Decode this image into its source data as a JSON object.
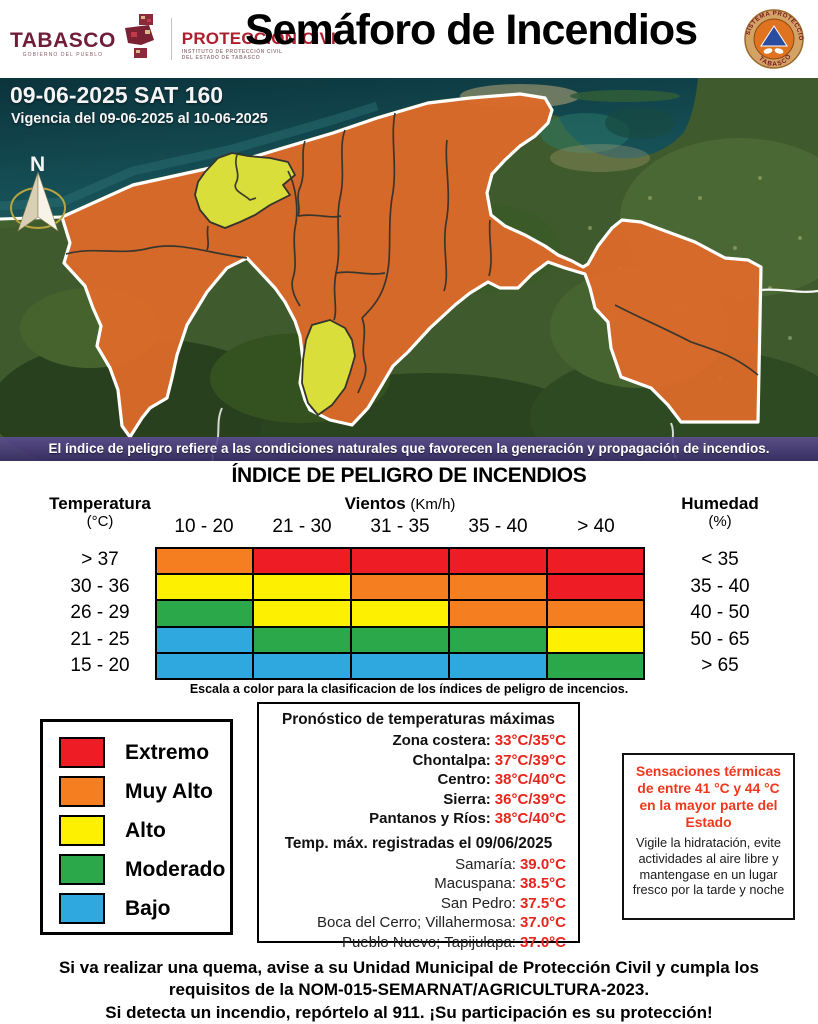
{
  "header": {
    "tabasco_logo": {
      "title": "TABASCO",
      "subtitle": "GOBIERNO DEL PUEBLO"
    },
    "pc_logo": {
      "title": "PROTECCIÓN CIVIL",
      "subtitle_line1": "INSTITUTO DE PROTECCIÓN CIVIL",
      "subtitle_line2": "DEL ESTADO DE TABASCO"
    },
    "title": "Semáforo de Incendios",
    "seal": {
      "arc_top": "SISTEMA PROTECCIÓN CIVIL",
      "arc_bottom": "TABASCO"
    }
  },
  "map": {
    "date_label": "09-06-2025 SAT 160",
    "vigencia": "Vigencia del 09-06-2025 al 10-06-2025",
    "north_label": "N",
    "caption": "El índice de peligro refiere a las condiciones naturales que favorecen la generación y propagación de incendios.",
    "colors": {
      "muy_alto": "#db6a2a",
      "alto": "#dade3a",
      "ocean": "#123f47",
      "land": "#3f5a2c"
    }
  },
  "index_table": {
    "title": "ÍNDICE DE PELIGRO DE INCENDIOS",
    "row_group_label": "Temperatura",
    "row_group_unit": "(°C)",
    "col_group_label": "Vientos",
    "col_group_unit": "(Km/h)",
    "humidity_label": "Humedad",
    "humidity_unit": "(%)",
    "wind_cols": [
      "10 - 20",
      "21 - 30",
      "31 - 35",
      "35 - 40",
      "> 40"
    ],
    "temp_rows": [
      "> 37",
      "30 - 36",
      "26 - 29",
      "21 - 25",
      "15 - 20"
    ],
    "humidity_rows": [
      "< 35",
      "35 - 40",
      "40 - 50",
      "50 - 65",
      "> 65"
    ],
    "cells": [
      [
        "orange",
        "red",
        "red",
        "red",
        "red"
      ],
      [
        "yellow",
        "yellow",
        "orange",
        "orange",
        "red"
      ],
      [
        "green",
        "yellow",
        "yellow",
        "orange",
        "orange"
      ],
      [
        "blue",
        "green",
        "green",
        "green",
        "yellow"
      ],
      [
        "blue",
        "blue",
        "blue",
        "blue",
        "green"
      ]
    ],
    "palette": {
      "red": "#ee1c25",
      "orange": "#f57e20",
      "yellow": "#fdf000",
      "green": "#2aa84a",
      "blue": "#2fa8e0"
    },
    "caption": "Escala a color para la clasificacion de los índices de peligro de incencios."
  },
  "legend": {
    "items": [
      {
        "label": "Extremo",
        "color": "#ee1c25"
      },
      {
        "label": "Muy Alto",
        "color": "#f57e20"
      },
      {
        "label": "Alto",
        "color": "#fdf000"
      },
      {
        "label": "Moderado",
        "color": "#2aa84a"
      },
      {
        "label": "Bajo",
        "color": "#2fa8e0"
      }
    ]
  },
  "forecast": {
    "title": "Pronóstico de temperaturas máximas",
    "zones": [
      {
        "label": "Zona costera:",
        "value": "33°C/35°C"
      },
      {
        "label": "Chontalpa:",
        "value": "37°C/39°C"
      },
      {
        "label": "Centro:",
        "value": "38°C/40°C"
      },
      {
        "label": "Sierra:",
        "value": "36°C/39°C"
      },
      {
        "label": "Pantanos y Ríos:",
        "value": "38°C/40°C"
      }
    ],
    "recorded_title": "Temp. máx. registradas el 09/06/2025",
    "recorded": [
      {
        "label": "Samaría:",
        "value": "39.0°C"
      },
      {
        "label": "Macuspana:",
        "value": "38.5°C"
      },
      {
        "label": "San Pedro:",
        "value": "37.5°C"
      },
      {
        "label": "Boca del Cerro; Villahermosa:",
        "value": "37.0°C"
      },
      {
        "label": "Pueblo Nuevo; Tapijulapa:",
        "value": "37.0°C"
      }
    ]
  },
  "heat_warning": {
    "title": "Sensaciones térmicas de entre 41 °C y 44 °C en la mayor parte del Estado",
    "body": "Vigile la hidratación, evite actividades al aire libre y mantengase en un lugar fresco por la tarde y noche"
  },
  "footer": {
    "line1": "Si va realizar una quema, avise a su Unidad Municipal de Protección Civil y cumpla los",
    "line2": "requisitos de la NOM-015-SEMARNAT/AGRICULTURA-2023.",
    "line3": "Si detecta un incendio, repórtelo al 911. ¡Su participación es su protección!"
  }
}
